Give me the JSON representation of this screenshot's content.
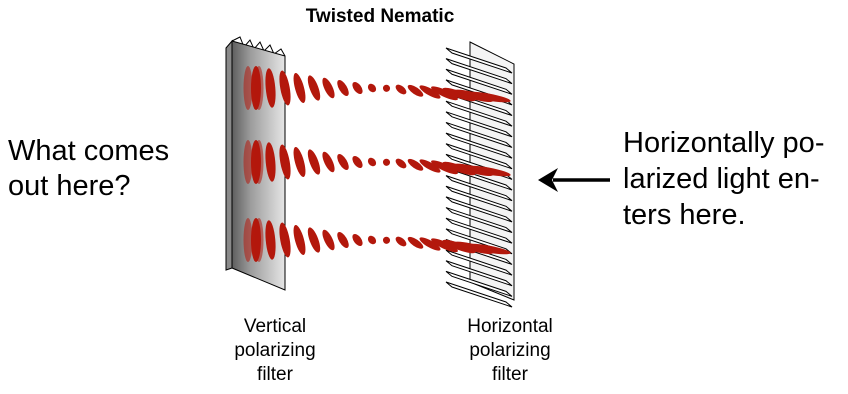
{
  "title": "Twisted Nematic",
  "left_question": [
    "What comes",
    "out here?"
  ],
  "right_note": [
    "Horizontally po-",
    "larized light en-",
    "ters here."
  ],
  "vertical_filter_label": [
    "Vertical",
    "polarizing",
    "filter"
  ],
  "horizontal_filter_label": [
    "Horizontal",
    "polarizing",
    "filter"
  ],
  "colors": {
    "wave": "#b3180c",
    "filter_front": "#d6d6d6",
    "filter_shadow": "#6e6e6e",
    "filter_edge": "#9a9a9a",
    "stripe_stroke": "#000000",
    "arrow": "#000000"
  },
  "icons": {
    "arrow": "arrow-left-icon",
    "vertical_filter": "vertical-polarizer-icon",
    "horizontal_filter": "horizontal-polarizer-icon"
  }
}
